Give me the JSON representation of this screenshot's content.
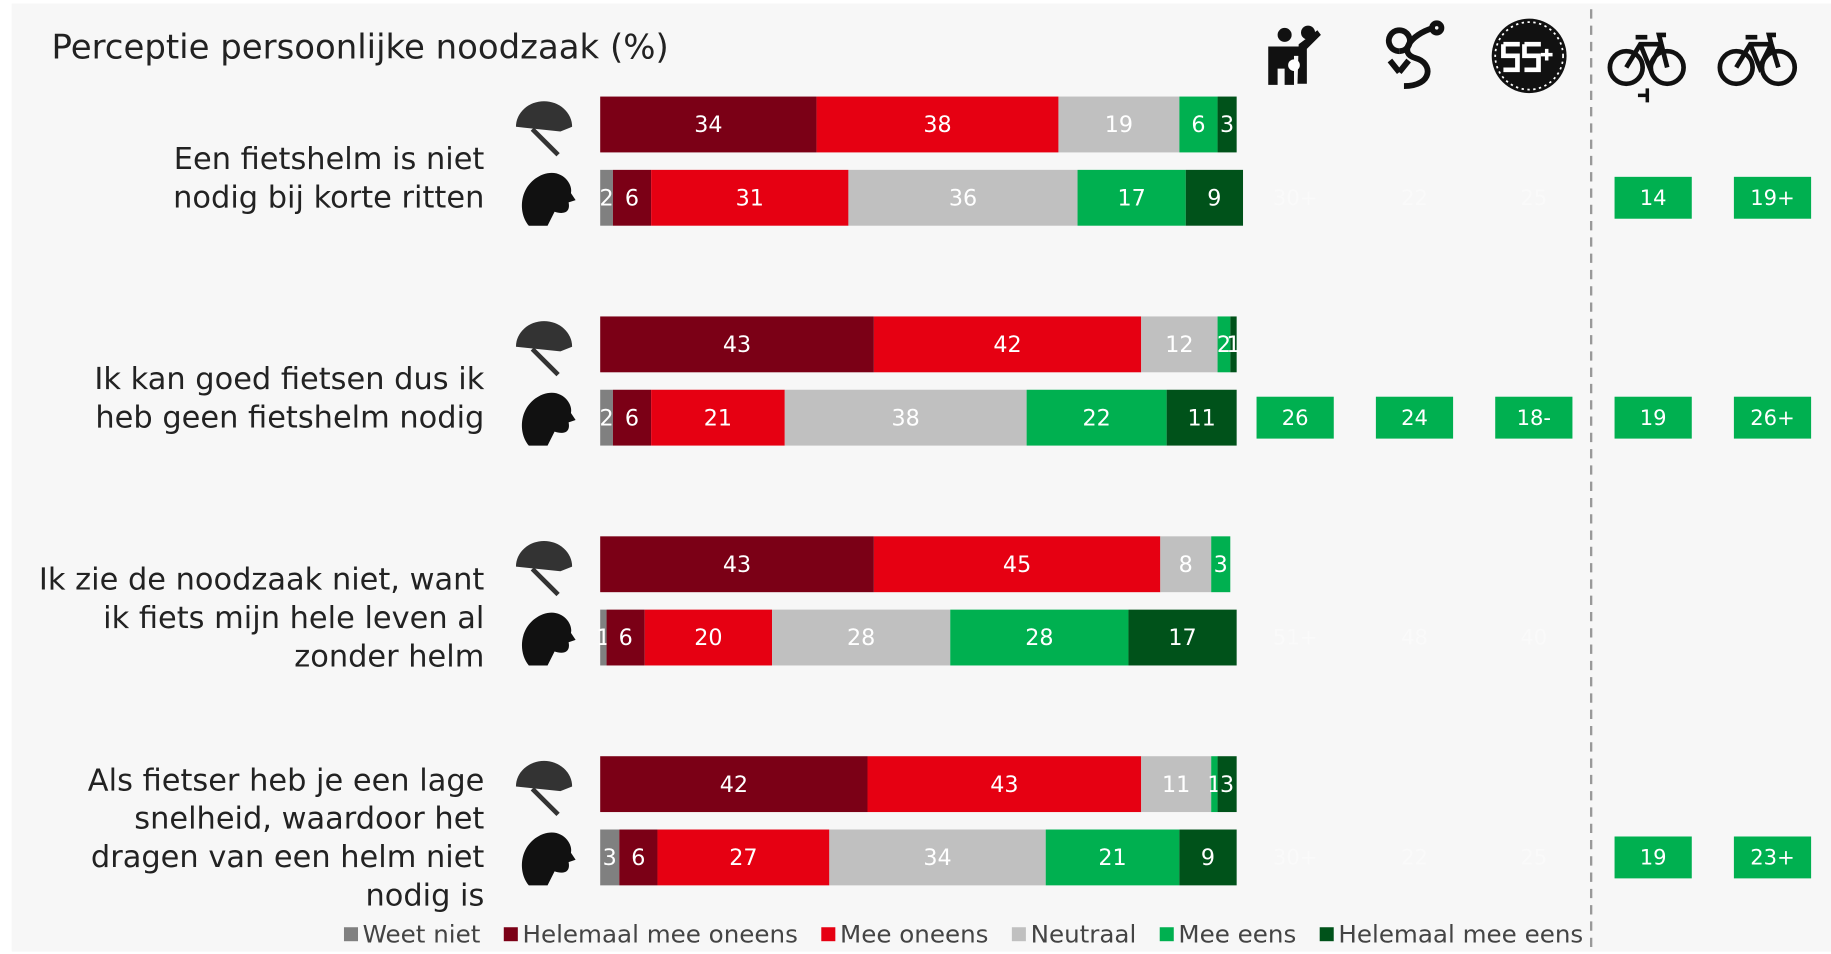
{
  "chart_data": {
    "type": "stacked_bar",
    "title": "Perceptie persoonlijke noodzaak (%)",
    "groups": [
      {
        "label_lines": [
          "Een fietshelm is niet",
          "nodig bij korte ritten"
        ]
      },
      {
        "label_lines": [
          "Ik kan goed fietsen dus ik",
          "heb geen fietshelm nodig"
        ]
      },
      {
        "label_lines": [
          "Ik zie de noodzaak niet, want",
          "ik fiets mijn hele leven al",
          "zonder helm"
        ]
      },
      {
        "label_lines": [
          "Als fietser heb je een lage",
          "snelheid, waardoor het",
          "dragen van een helm niet",
          "nodig is"
        ]
      }
    ],
    "series": [
      {
        "name": "Weet niet",
        "color": "#808080",
        "values": [
          0,
          2,
          0,
          2,
          0,
          1,
          0,
          3
        ]
      },
      {
        "name": "Helemaal mee oneens",
        "color": "#7b0016",
        "values": [
          34,
          6,
          43,
          6,
          43,
          6,
          42,
          6
        ]
      },
      {
        "name": "Mee oneens",
        "color": "#e60012",
        "values": [
          38,
          31,
          42,
          21,
          45,
          20,
          43,
          27
        ]
      },
      {
        "name": "Neutraal",
        "color": "#c0c0c0",
        "values": [
          19,
          36,
          12,
          38,
          8,
          28,
          11,
          34
        ]
      },
      {
        "name": "Mee eens",
        "color": "#00b050",
        "values": [
          6,
          17,
          2,
          22,
          3,
          28,
          1,
          21
        ]
      },
      {
        "name": "Helemaal mee eens",
        "color": "#00521a",
        "values": [
          3,
          9,
          1,
          11,
          0,
          17,
          3,
          9
        ]
      }
    ],
    "xlim": [
      0,
      100
    ],
    "comparison": {
      "highlight_color": "#00b050",
      "rows": [
        {
          "cells": [
            "30+",
            "22",
            "25",
            "14",
            "19+"
          ],
          "highlighted": [
            false,
            false,
            false,
            true,
            true
          ]
        },
        {
          "cells": [
            "26",
            "24",
            "18-",
            "19",
            "26+"
          ],
          "highlighted": [
            true,
            true,
            true,
            true,
            true
          ]
        },
        {
          "cells": [
            "51+",
            "48",
            "40",
            null,
            null
          ],
          "highlighted": [
            false,
            false,
            false,
            false,
            false
          ]
        },
        {
          "cells": [
            "30+",
            "22",
            "25",
            "19",
            "23+"
          ],
          "highlighted": [
            false,
            false,
            false,
            true,
            true
          ]
        }
      ]
    }
  }
}
